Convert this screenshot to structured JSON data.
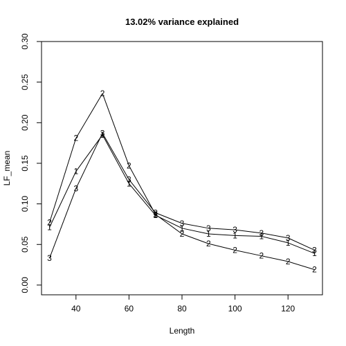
{
  "chart_data": {
    "type": "line",
    "title": "13.02% variance explained",
    "xlabel": "Length",
    "ylabel": "LF_mean",
    "xlim": [
      27,
      133
    ],
    "ylim": [
      -0.012,
      0.3
    ],
    "x_ticks": [
      40,
      60,
      80,
      100,
      120
    ],
    "y_ticks": [
      0.0,
      0.05,
      0.1,
      0.15,
      0.2,
      0.25,
      0.3
    ],
    "y_tick_labels": [
      "0.00",
      "0.05",
      "0.10",
      "0.15",
      "0.20",
      "0.25",
      "0.30"
    ],
    "grid": false,
    "x": [
      30,
      40,
      50,
      60,
      70,
      80,
      90,
      100,
      110,
      120,
      130
    ],
    "series": [
      {
        "name": "1",
        "marker": "1",
        "values": [
          0.071,
          0.14,
          0.185,
          0.125,
          0.086,
          0.07,
          0.063,
          0.061,
          0.06,
          0.052,
          0.039
        ]
      },
      {
        "name": "2",
        "marker": "2",
        "values": [
          0.077,
          0.181,
          0.236,
          0.147,
          0.087,
          0.063,
          0.051,
          0.043,
          0.036,
          0.029,
          0.019
        ]
      },
      {
        "name": "3",
        "marker": "3",
        "values": [
          0.033,
          0.119,
          0.187,
          0.13,
          0.089,
          0.076,
          0.07,
          0.068,
          0.064,
          0.058,
          0.043
        ]
      }
    ]
  }
}
